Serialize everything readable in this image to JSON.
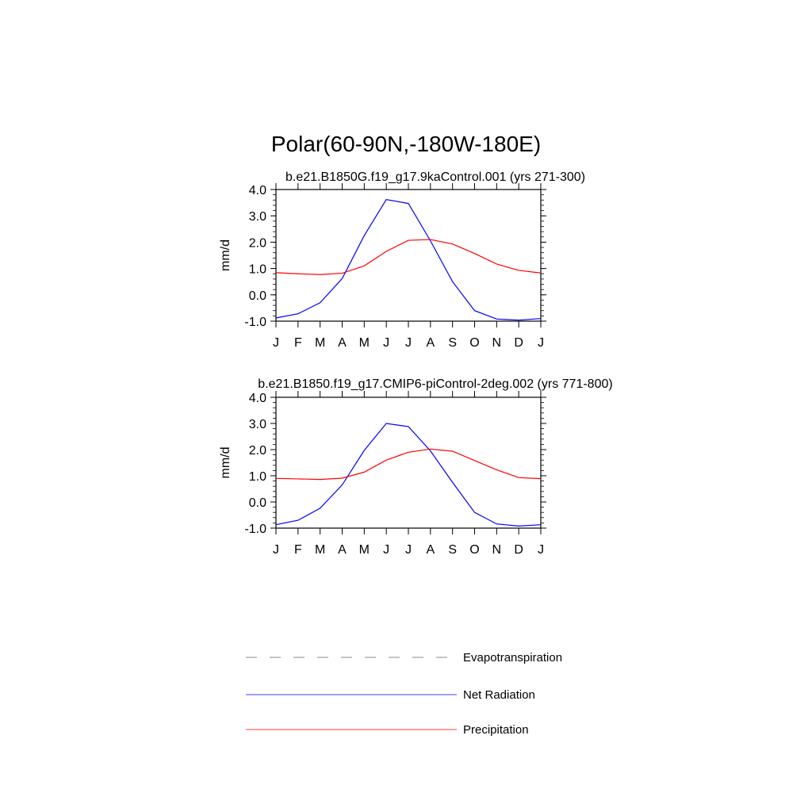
{
  "title": "Polar(60-90N,-180W-180E)",
  "colors": {
    "net_radiation": "#0000ff",
    "precipitation": "#ff0000",
    "evapotranspiration": "#888888",
    "axis": "#000000"
  },
  "legend": {
    "evapotranspiration": "Evapotranspiration",
    "net_radiation": "Net Radiation",
    "precipitation": "Precipitation"
  },
  "chart_data": [
    {
      "type": "line",
      "title": "b.e21.B1850G.f19_g17.9kaControl.001 (yrs 271-300)",
      "xlabel": "",
      "ylabel": "mm/d",
      "categories": [
        "J",
        "F",
        "M",
        "A",
        "M",
        "J",
        "J",
        "A",
        "S",
        "O",
        "N",
        "D",
        "J"
      ],
      "ylim": [
        -1.0,
        4.0
      ],
      "yticks": [
        -1.0,
        0.0,
        1.0,
        2.0,
        3.0,
        4.0
      ],
      "ytick_labels": [
        "-1.0",
        "0.0",
        "1.0",
        "2.0",
        "3.0",
        "4.0"
      ],
      "series": [
        {
          "name": "Net Radiation",
          "key": "net_radiation",
          "values": [
            -0.88,
            -0.72,
            -0.3,
            0.62,
            2.25,
            3.62,
            3.47,
            2.05,
            0.5,
            -0.6,
            -0.92,
            -0.96,
            -0.9
          ]
        },
        {
          "name": "Precipitation",
          "key": "precipitation",
          "values": [
            0.84,
            0.8,
            0.77,
            0.82,
            1.1,
            1.65,
            2.07,
            2.1,
            1.93,
            1.57,
            1.17,
            0.93,
            0.83
          ]
        }
      ]
    },
    {
      "type": "line",
      "title": "b.e21.B1850.f19_g17.CMIP6-piControl-2deg.002 (yrs 771-800)",
      "xlabel": "",
      "ylabel": "mm/d",
      "categories": [
        "J",
        "F",
        "M",
        "A",
        "M",
        "J",
        "J",
        "A",
        "S",
        "O",
        "N",
        "D",
        "J"
      ],
      "ylim": [
        -1.0,
        4.0
      ],
      "yticks": [
        -1.0,
        0.0,
        1.0,
        2.0,
        3.0,
        4.0
      ],
      "ytick_labels": [
        "-1.0",
        "0.0",
        "1.0",
        "2.0",
        "3.0",
        "4.0"
      ],
      "series": [
        {
          "name": "Net Radiation",
          "key": "net_radiation",
          "values": [
            -0.87,
            -0.7,
            -0.24,
            0.65,
            1.97,
            3.0,
            2.88,
            1.95,
            0.75,
            -0.4,
            -0.84,
            -0.92,
            -0.87
          ]
        },
        {
          "name": "Precipitation",
          "key": "precipitation",
          "values": [
            0.9,
            0.88,
            0.86,
            0.91,
            1.14,
            1.6,
            1.9,
            2.02,
            1.94,
            1.58,
            1.23,
            0.93,
            0.89
          ]
        }
      ]
    }
  ]
}
